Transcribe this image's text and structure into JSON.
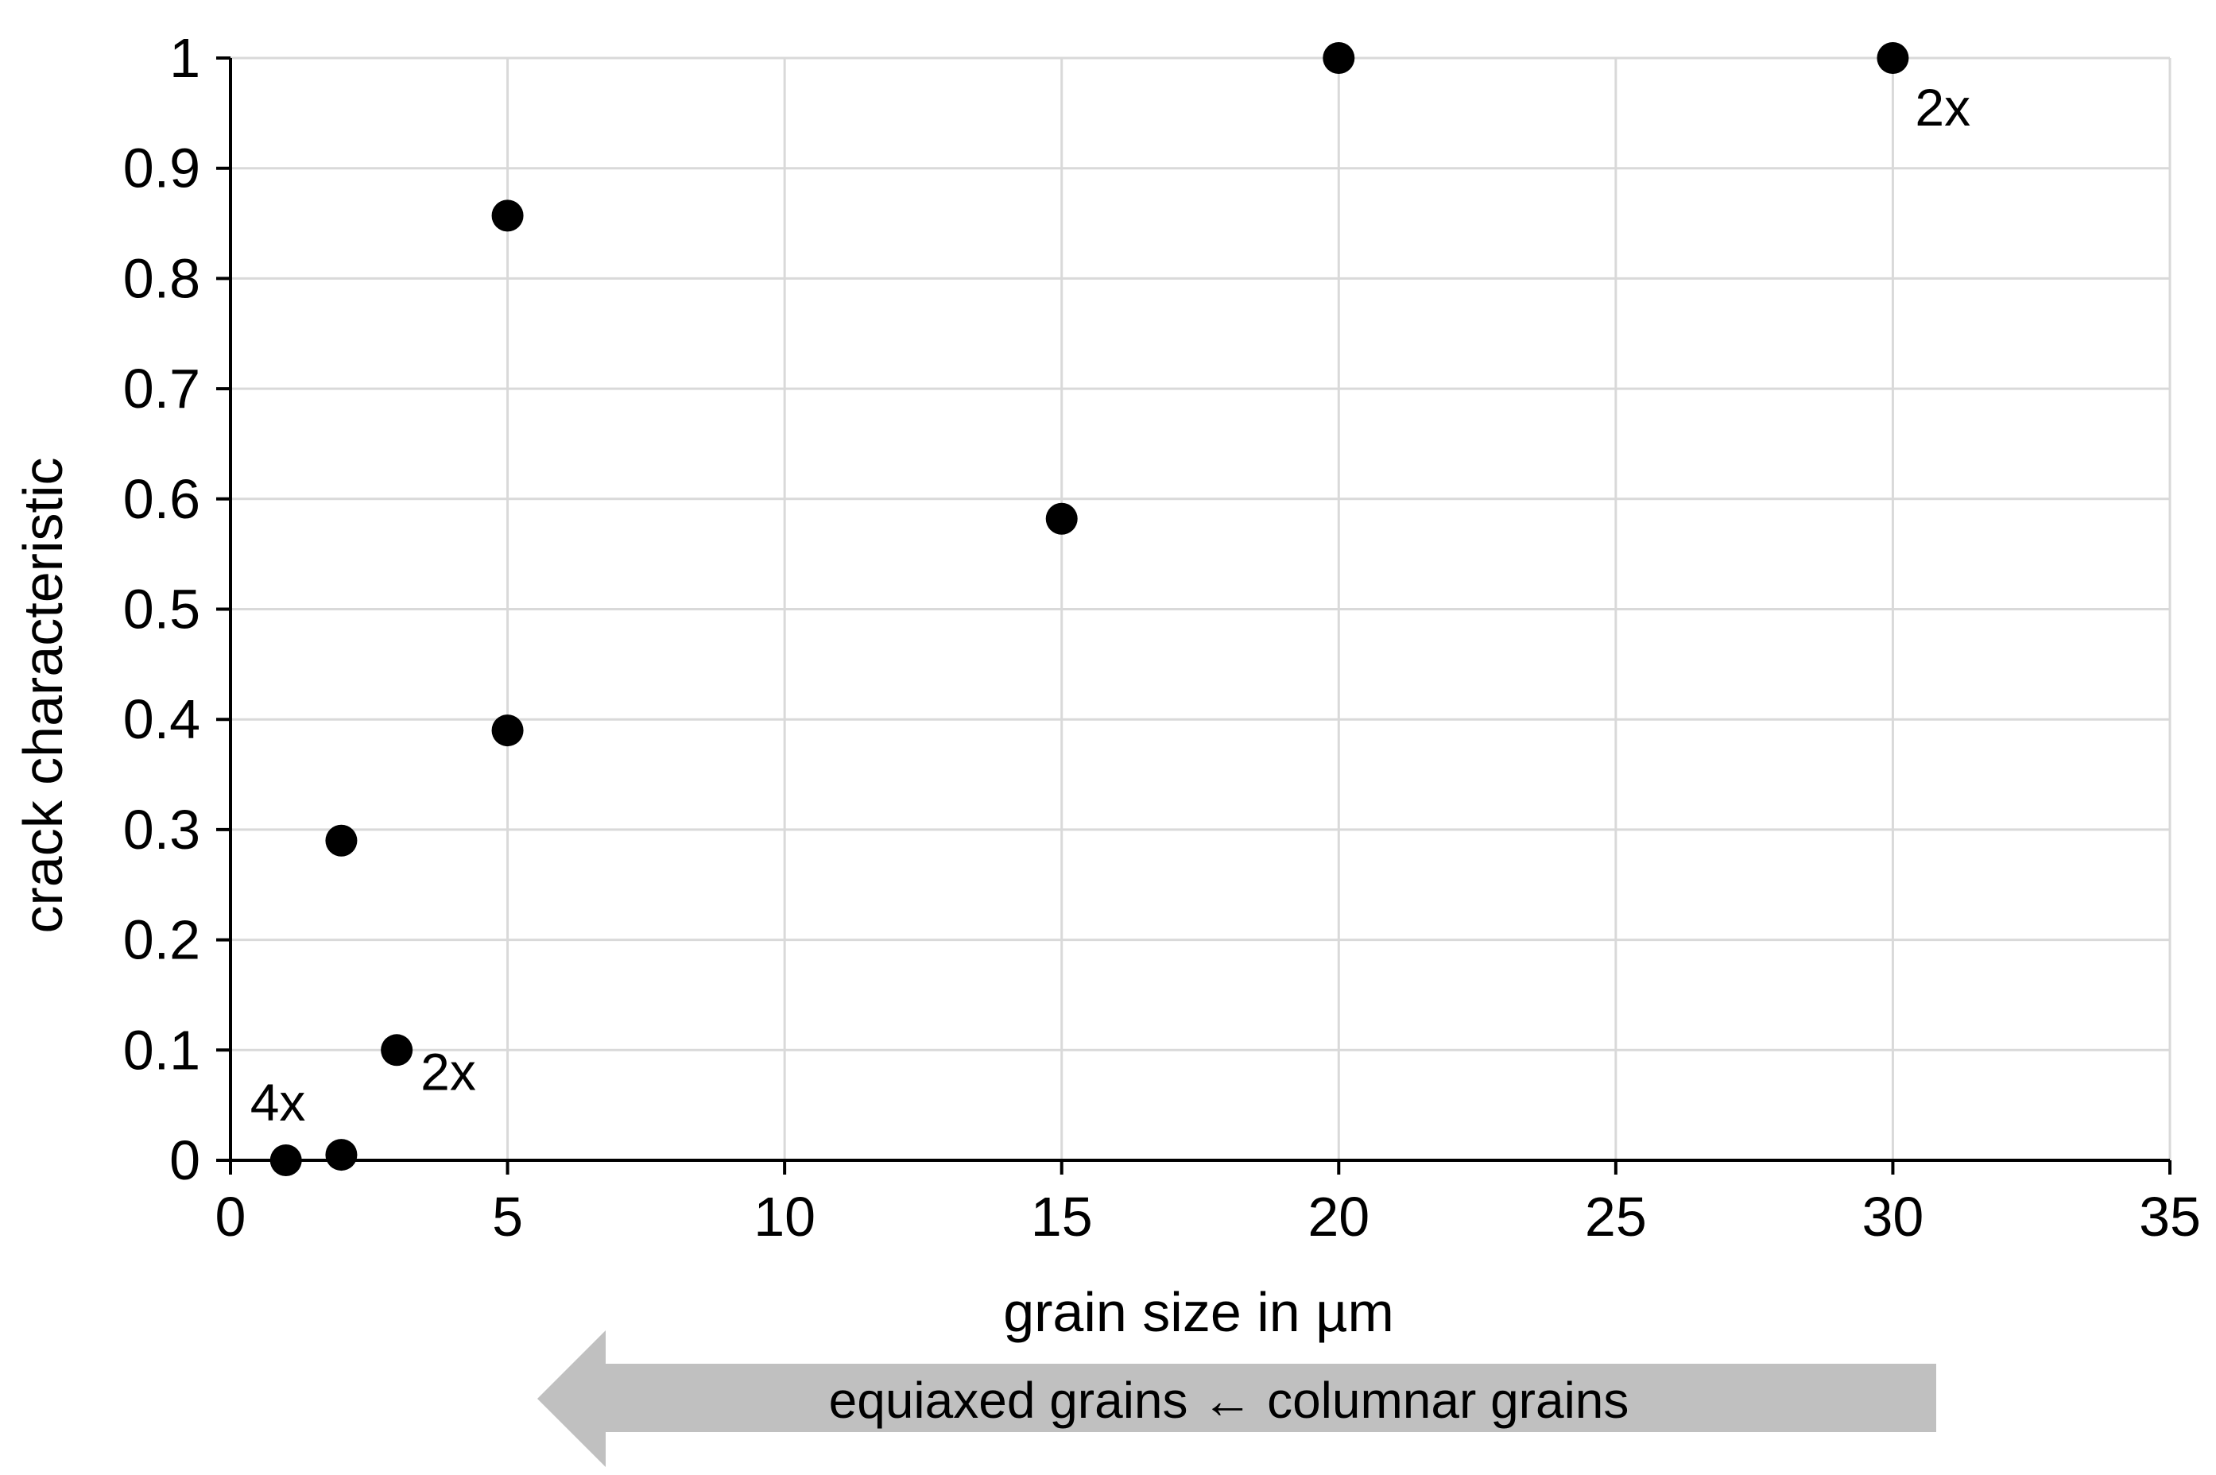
{
  "chart_data": {
    "type": "scatter",
    "title": "",
    "xlabel": "grain size in µm",
    "ylabel": "crack characteristic",
    "xlim": [
      0,
      35
    ],
    "ylim": [
      0,
      1
    ],
    "x_ticks": [
      "0",
      "5",
      "10",
      "15",
      "20",
      "25",
      "30",
      "35"
    ],
    "y_ticks": [
      "0",
      "0.1",
      "0.2",
      "0.3",
      "0.4",
      "0.5",
      "0.6",
      "0.7",
      "0.8",
      "0.9",
      "1"
    ],
    "grid": true,
    "legend": "none",
    "series": [
      {
        "points": [
          {
            "x": 1,
            "y": 0
          },
          {
            "x": 2,
            "y": 0.005
          },
          {
            "x": 2,
            "y": 0.29
          },
          {
            "x": 3,
            "y": 0.1
          },
          {
            "x": 5,
            "y": 0.39
          },
          {
            "x": 5,
            "y": 0.857
          },
          {
            "x": 15,
            "y": 0.582
          },
          {
            "x": 20,
            "y": 1
          },
          {
            "x": 30,
            "y": 1
          }
        ]
      }
    ],
    "annotations": [
      {
        "text": "4x",
        "x": 1,
        "y": 0
      },
      {
        "text": "2x",
        "x": 3,
        "y": 0.1
      },
      {
        "text": "2x",
        "x": 30,
        "y": 1
      }
    ],
    "arrow_label": "equiaxed grains ← columnar grains",
    "colors": {
      "marker": "#000000",
      "grid": "#d9d9d9",
      "axis": "#000000",
      "arrow": "#c0c0c0"
    }
  }
}
